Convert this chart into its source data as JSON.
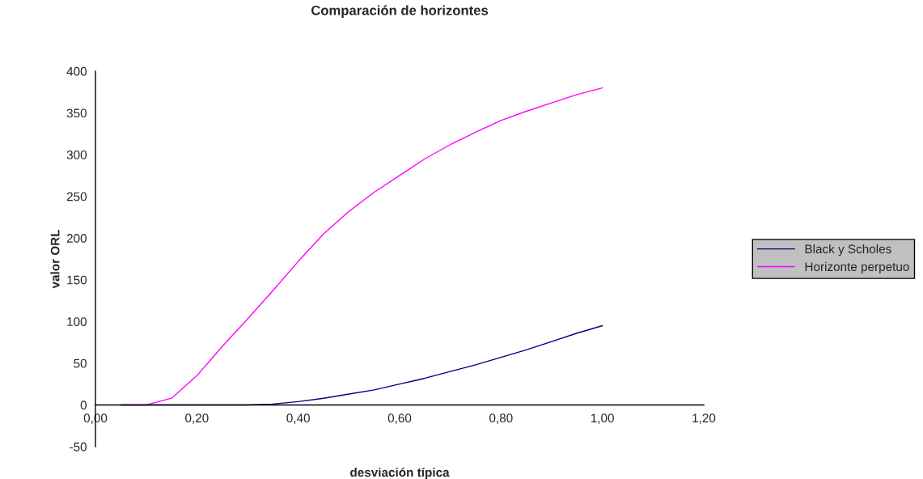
{
  "chart_data": {
    "type": "line",
    "title": "Comparación de horizontes",
    "xlabel": "desviación típica",
    "ylabel": "valor ORL",
    "x": [
      0.05,
      0.1,
      0.15,
      0.2,
      0.25,
      0.3,
      0.35,
      0.4,
      0.45,
      0.5,
      0.55,
      0.6,
      0.65,
      0.7,
      0.75,
      0.8,
      0.85,
      0.9,
      0.95,
      1.0
    ],
    "series": [
      {
        "name": "Black y Scholes",
        "color": "#000080",
        "values": [
          0,
          0,
          0,
          0,
          0,
          0,
          1,
          4,
          8,
          13,
          18,
          25,
          32,
          40,
          48,
          57,
          66,
          76,
          86,
          95
        ]
      },
      {
        "name": "Horizonte perpetuo",
        "color": "#ff00ff",
        "values": [
          0,
          0,
          8,
          35,
          70,
          103,
          137,
          172,
          205,
          232,
          255,
          275,
          295,
          312,
          327,
          341,
          352,
          362,
          372,
          380
        ]
      }
    ],
    "xlim": [
      0,
      1.2
    ],
    "xticks": [
      {
        "value": 0,
        "label": "0,00"
      },
      {
        "value": 0.2,
        "label": "0,20"
      },
      {
        "value": 0.4,
        "label": "0,40"
      },
      {
        "value": 0.6,
        "label": "0,60"
      },
      {
        "value": 0.8,
        "label": "0,80"
      },
      {
        "value": 1.0,
        "label": "1,00"
      },
      {
        "value": 1.2,
        "label": "1,20"
      }
    ],
    "ylim": [
      -50,
      400
    ],
    "yticks": [
      -50,
      0,
      50,
      100,
      150,
      200,
      250,
      300,
      350,
      400
    ],
    "grid": false,
    "legend": "right",
    "marker": "none",
    "line_style": "solid"
  }
}
